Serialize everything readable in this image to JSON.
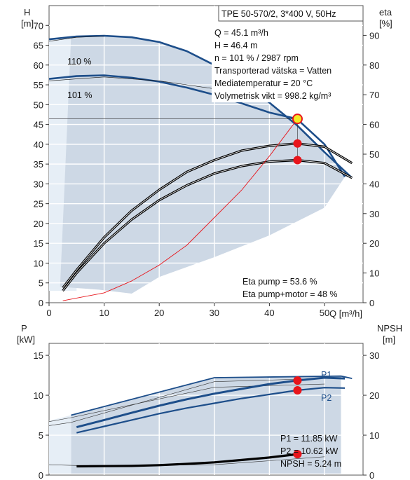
{
  "header": {
    "title": "TPE 50-570/2, 3*400 V, 50Hz"
  },
  "operating_point": [
    "Q = 45.1 m³/h",
    "H = 46.4 m",
    "n = 101 % / 2987 rpm",
    "Transporterad vätska = Vatten",
    "Mediatemperatur = 20 °C",
    "Volymetrisk vikt = 998.2 kg/m³"
  ],
  "efficiency_info": [
    "Eta pump = 53.6 %",
    "Eta pump+motor = 48 %"
  ],
  "power_info": [
    "P1 = 11.85 kW",
    "P2 = 10.62 kW",
    "NPSH = 5.24 m"
  ],
  "colors": {
    "curve": "#1d4e8a",
    "area": "#cdd8e5",
    "area_light": "#e6eef6",
    "point": "#e8151b",
    "point_fill": "#f3ea24",
    "system_curve": "#e8151b"
  },
  "chart_data": [
    {
      "type": "line",
      "title": "TPE 50-570/2, 3*400 V, 50Hz",
      "xlabel": "Q [m³/h]",
      "ylabel_left": "H [m]",
      "ylabel_right": "eta [%]",
      "xlim": [
        0,
        57
      ],
      "ylim_left": [
        0,
        75
      ],
      "ylim_right": [
        0,
        100
      ],
      "x_ticks": [
        0,
        10,
        20,
        30,
        40,
        50
      ],
      "y_ticks_left": [
        0,
        5,
        10,
        15,
        20,
        25,
        30,
        35,
        40,
        45,
        50,
        55,
        60,
        65,
        70
      ],
      "y_ticks_right": [
        0,
        10,
        20,
        30,
        40,
        50,
        60,
        70,
        80,
        90
      ],
      "grid": true,
      "series": [
        {
          "name": "110 %",
          "axis": "H",
          "x": [
            0,
            5,
            10,
            15,
            20,
            25,
            30,
            35,
            40,
            45,
            50,
            55
          ],
          "y": [
            66.5,
            67.2,
            67.4,
            67.0,
            65.8,
            63.5,
            60.0,
            55.6,
            50.5,
            44.8,
            38.0,
            31.5
          ]
        },
        {
          "name": "101 %",
          "axis": "H",
          "x": [
            0,
            5,
            10,
            15,
            20,
            25,
            30,
            35,
            40,
            45,
            50,
            53.7
          ],
          "y": [
            56.5,
            57.2,
            57.4,
            56.8,
            55.8,
            54.3,
            52.5,
            50.3,
            48.0,
            46.4,
            40.0,
            31.8
          ]
        },
        {
          "axis": "eta",
          "x": [
            2.5,
            5,
            10,
            15,
            20,
            25,
            30,
            35,
            40,
            45,
            50,
            55
          ],
          "y": [
            5,
            11,
            22,
            31,
            38,
            44,
            48,
            51.2,
            52.8,
            53.6,
            52.5,
            47
          ]
        },
        {
          "axis": "eta",
          "x": [
            2.5,
            5,
            10,
            15,
            20,
            25,
            30,
            35,
            40,
            45,
            50,
            55
          ],
          "y": [
            4,
            10,
            20,
            28,
            34.5,
            39.5,
            43.5,
            46,
            47.5,
            48.0,
            47,
            42
          ]
        },
        {
          "axis": "system",
          "x": [
            2.5,
            10,
            15,
            20,
            25,
            30,
            35,
            40,
            45.1
          ],
          "y": [
            0.5,
            2.5,
            5.5,
            9.5,
            14.5,
            21.5,
            28.5,
            37,
            46.4
          ]
        }
      ],
      "points": [
        {
          "x": 45.1,
          "y": 46.4,
          "axis": "H"
        },
        {
          "x": 45.1,
          "y": 53.6,
          "axis": "eta"
        },
        {
          "x": 45.1,
          "y": 48,
          "axis": "eta"
        }
      ]
    },
    {
      "type": "line",
      "xlabel": "",
      "ylabel_left": "P [kW]",
      "ylabel_right": "NPSH [m]",
      "xlim": [
        0,
        57
      ],
      "ylim_left": [
        0,
        16.5
      ],
      "ylim_right": [
        0,
        33
      ],
      "y_ticks_left": [
        0,
        5,
        10,
        15
      ],
      "y_ticks_right": [
        0,
        10,
        20,
        30
      ],
      "grid": true,
      "series": [
        {
          "name": "P1",
          "axis": "P",
          "x": [
            5,
            10,
            15,
            20,
            25,
            30,
            35,
            40,
            45,
            50,
            53.7
          ],
          "y": [
            6.0,
            6.9,
            7.8,
            8.7,
            9.5,
            10.2,
            10.8,
            11.4,
            11.85,
            12.2,
            12.1
          ]
        },
        {
          "name": "P2",
          "axis": "P",
          "x": [
            5,
            10,
            15,
            20,
            25,
            30,
            35,
            40,
            45,
            50,
            53.7
          ],
          "y": [
            5.3,
            6.1,
            6.9,
            7.7,
            8.4,
            9.0,
            9.6,
            10.1,
            10.62,
            10.95,
            10.9
          ]
        },
        {
          "name": "NPSH",
          "axis": "NPSH",
          "x": [
            5,
            10,
            15,
            20,
            25,
            30,
            35,
            40,
            45.1
          ],
          "y": [
            2.2,
            2.25,
            2.3,
            2.5,
            2.8,
            3.2,
            3.8,
            4.4,
            5.24
          ]
        }
      ],
      "points": [
        {
          "x": 45.1,
          "y": 11.85,
          "axis": "P"
        },
        {
          "x": 45.1,
          "y": 10.62,
          "axis": "P"
        },
        {
          "x": 45.1,
          "y": 5.24,
          "axis": "NPSH"
        }
      ]
    }
  ]
}
